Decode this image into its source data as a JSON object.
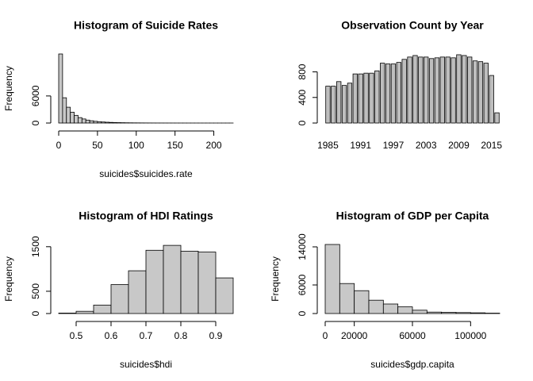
{
  "chart_data": [
    {
      "type": "histogram",
      "title": "Histogram of Suicide Rates",
      "x_label": "suicides$suicides.rate",
      "y_label": "Frequency",
      "bins": [
        0,
        5,
        10,
        15,
        20,
        25,
        30,
        35,
        40,
        45,
        50,
        55,
        60,
        65,
        70,
        75,
        80,
        85,
        90,
        95,
        100,
        105,
        110,
        115,
        120,
        125,
        130,
        135,
        140,
        145,
        150,
        155,
        160,
        165,
        170,
        175,
        180,
        185,
        190,
        195,
        200,
        205,
        210,
        215,
        220,
        225
      ],
      "values": [
        15300,
        5600,
        3500,
        2400,
        1700,
        1200,
        900,
        650,
        500,
        380,
        300,
        230,
        180,
        140,
        110,
        90,
        70,
        55,
        45,
        35,
        30,
        25,
        20,
        16,
        13,
        10,
        8,
        7,
        6,
        5,
        4,
        3,
        3,
        2,
        2,
        2,
        1,
        1,
        1,
        1,
        1,
        1,
        1,
        1,
        1
      ],
      "color": "#c8c8c8",
      "xlim": [
        0,
        225
      ],
      "ylim": [
        0,
        15300
      ],
      "xticks": [
        0,
        50,
        100,
        150,
        200
      ],
      "yticks": [
        0,
        6000
      ]
    },
    {
      "type": "bar",
      "title": "Observation Count by Year",
      "categories": [
        "1985",
        null,
        null,
        null,
        null,
        null,
        "1991",
        null,
        null,
        null,
        null,
        null,
        "1997",
        null,
        null,
        null,
        null,
        null,
        "2003",
        null,
        null,
        null,
        null,
        null,
        "2009",
        null,
        null,
        null,
        null,
        null,
        "2015",
        null
      ],
      "values": [
        576,
        576,
        648,
        588,
        624,
        768,
        768,
        780,
        780,
        816,
        936,
        924,
        924,
        948,
        996,
        1032,
        1056,
        1032,
        1032,
        1008,
        1020,
        1032,
        1032,
        1020,
        1068,
        1056,
        1032,
        972,
        960,
        936,
        744,
        160
      ],
      "color": "#bebebe",
      "ylim": [
        0,
        1080
      ],
      "yticks": [
        0,
        400,
        800
      ]
    },
    {
      "type": "histogram",
      "title": "Histogram of HDI Ratings",
      "x_label": "suicides$hdi",
      "y_label": "Frequency",
      "bins": [
        0.45,
        0.5,
        0.55,
        0.6,
        0.65,
        0.7,
        0.75,
        0.8,
        0.85,
        0.9,
        0.95
      ],
      "values": [
        10,
        50,
        190,
        650,
        960,
        1420,
        1530,
        1400,
        1380,
        800
      ],
      "color": "#c8c8c8",
      "xlim": [
        0.45,
        0.95
      ],
      "ylim": [
        0,
        1550
      ],
      "xticks": [
        0.5,
        0.6,
        0.7,
        0.8,
        0.9
      ],
      "yticks": [
        0,
        500,
        1500
      ]
    },
    {
      "type": "histogram",
      "title": "Histogram of GDP per Capita",
      "x_label": "suicides$gdp.capita",
      "y_label": "Frequency",
      "bins": [
        0,
        10000,
        20000,
        30000,
        40000,
        50000,
        60000,
        70000,
        80000,
        90000,
        100000,
        110000,
        120000
      ],
      "values": [
        14500,
        6300,
        4800,
        2800,
        2000,
        1400,
        700,
        300,
        250,
        200,
        150,
        80
      ],
      "color": "#c8c8c8",
      "xlim": [
        0,
        120000
      ],
      "ylim": [
        0,
        14500
      ],
      "xticks": [
        0,
        20000,
        60000,
        100000
      ],
      "yticks": [
        0,
        6000,
        14000
      ]
    }
  ]
}
